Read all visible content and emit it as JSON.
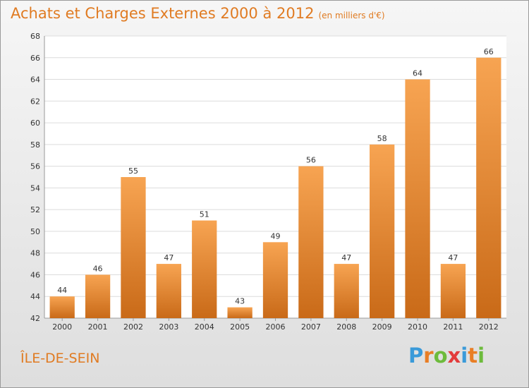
{
  "chart_data": {
    "type": "bar",
    "title": "Achats et Charges Externes 2000 à 2012",
    "unit": "(en milliers d'€)",
    "categories": [
      "2000",
      "2001",
      "2002",
      "2003",
      "2004",
      "2005",
      "2006",
      "2007",
      "2008",
      "2009",
      "2010",
      "2011",
      "2012"
    ],
    "values": [
      44,
      46,
      55,
      47,
      51,
      43,
      49,
      56,
      47,
      58,
      64,
      47,
      66
    ],
    "xlabel": "",
    "ylabel": "",
    "ylim": [
      42,
      68
    ],
    "yticks": [
      42,
      44,
      46,
      48,
      50,
      52,
      54,
      56,
      58,
      60,
      62,
      64,
      66,
      68
    ],
    "grid": true,
    "bar_color_top": "#f7a452",
    "bar_color_bottom": "#c96a18"
  },
  "footer": {
    "place": "ÎLE-DE-SEIN",
    "logo": [
      "P",
      "r",
      "o",
      "x",
      "i",
      "t",
      "i"
    ],
    "logo_colors": [
      "#3a9ad9",
      "#e97e25",
      "#6dbb3c",
      "#e33b3b",
      "#3a9ad9",
      "#e97e25",
      "#6dbb3c"
    ]
  }
}
